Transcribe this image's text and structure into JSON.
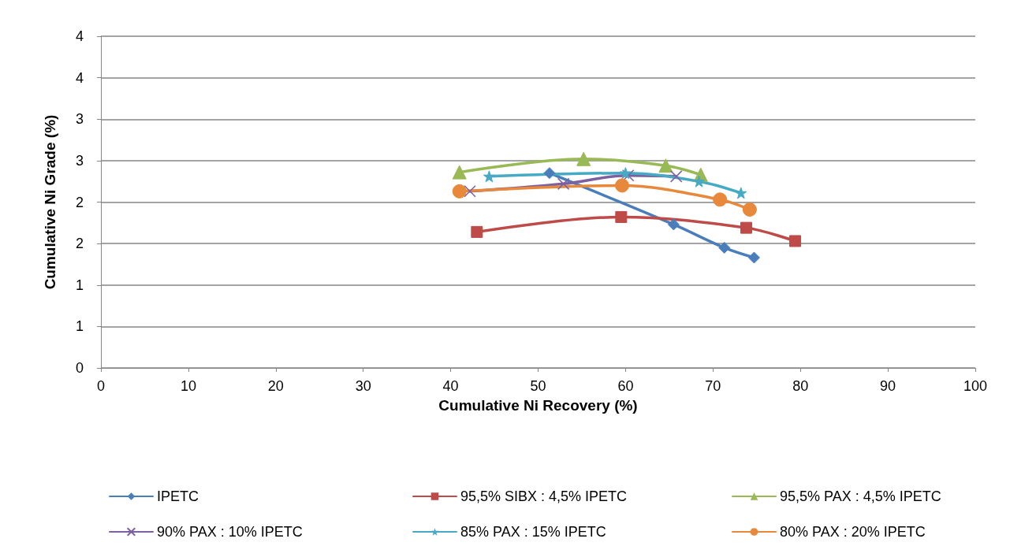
{
  "chart_data": {
    "type": "line",
    "xlabel": "Cumulative Ni Recovery (%)",
    "ylabel": "Cumulative Ni Grade (%)",
    "xlim": [
      0,
      100
    ],
    "xticks": [
      0,
      10,
      20,
      30,
      40,
      50,
      60,
      70,
      80,
      90,
      100
    ],
    "ylim": [
      0,
      4
    ],
    "yticks": [
      0,
      {
        "value": 0.5,
        "label": "1"
      },
      1,
      {
        "value": 1.5,
        "label": "2"
      },
      2,
      {
        "value": 2.5,
        "label": "3"
      },
      3,
      {
        "value": 3.5,
        "label": "4"
      },
      4
    ],
    "grid": "y",
    "legend": "bottom",
    "line_style": "solid",
    "series": [
      {
        "name": "IPETC",
        "color": "#4a7ebb",
        "marker": "diamond",
        "x": [
          51.3,
          65.5,
          71.3,
          74.7
        ],
        "values": [
          2.35,
          1.73,
          1.45,
          1.33
        ]
      },
      {
        "name": "95,5% SIBX : 4,5% IPETC",
        "color": "#be4b48",
        "marker": "square",
        "x": [
          43,
          59.5,
          73.8,
          79.4
        ],
        "values": [
          1.64,
          1.82,
          1.69,
          1.53
        ]
      },
      {
        "name": "95,5% PAX : 4,5% IPETC",
        "color": "#98b954",
        "marker": "triangle",
        "x": [
          41,
          55.2,
          64.6,
          68.6
        ],
        "values": [
          2.36,
          2.52,
          2.44,
          2.33
        ]
      },
      {
        "name": "90% PAX : 10% IPETC",
        "color": "#7d60a0",
        "marker": "cross",
        "x": [
          42.2,
          52.9,
          60.3,
          65.8
        ],
        "values": [
          2.13,
          2.22,
          2.32,
          2.31
        ]
      },
      {
        "name": "85% PAX : 15% IPETC",
        "color": "#46aac5",
        "marker": "star",
        "x": [
          44.4,
          60,
          68.4,
          73.2
        ],
        "values": [
          2.31,
          2.35,
          2.25,
          2.11
        ]
      },
      {
        "name": "80% PAX : 20% IPETC",
        "color": "#e8883a",
        "marker": "circle",
        "x": [
          41,
          59.6,
          70.8,
          74.2
        ],
        "values": [
          2.13,
          2.2,
          2.03,
          1.91
        ]
      }
    ]
  }
}
